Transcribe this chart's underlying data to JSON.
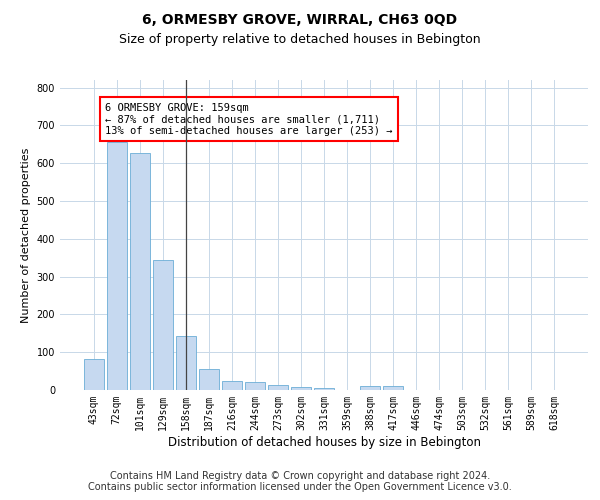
{
  "title": "6, ORMESBY GROVE, WIRRAL, CH63 0QD",
  "subtitle": "Size of property relative to detached houses in Bebington",
  "xlabel": "Distribution of detached houses by size in Bebington",
  "ylabel": "Number of detached properties",
  "categories": [
    "43sqm",
    "72sqm",
    "101sqm",
    "129sqm",
    "158sqm",
    "187sqm",
    "216sqm",
    "244sqm",
    "273sqm",
    "302sqm",
    "331sqm",
    "359sqm",
    "388sqm",
    "417sqm",
    "446sqm",
    "474sqm",
    "503sqm",
    "532sqm",
    "561sqm",
    "589sqm",
    "618sqm"
  ],
  "values": [
    82,
    655,
    628,
    343,
    143,
    55,
    25,
    20,
    13,
    8,
    4,
    0,
    10,
    10,
    0,
    0,
    0,
    0,
    0,
    0,
    0
  ],
  "bar_color": "#c6d9f0",
  "bar_edge_color": "#6baed6",
  "highlight_index": 4,
  "highlight_line_color": "#444444",
  "annotation_box_text": "6 ORMESBY GROVE: 159sqm\n← 87% of detached houses are smaller (1,711)\n13% of semi-detached houses are larger (253) →",
  "annotation_box_color": "white",
  "annotation_box_edge_color": "red",
  "ylim": [
    0,
    820
  ],
  "yticks": [
    0,
    100,
    200,
    300,
    400,
    500,
    600,
    700,
    800
  ],
  "bg_color": "white",
  "grid_color": "#c8d8e8",
  "footer_line1": "Contains HM Land Registry data © Crown copyright and database right 2024.",
  "footer_line2": "Contains public sector information licensed under the Open Government Licence v3.0.",
  "title_fontsize": 10,
  "subtitle_fontsize": 9,
  "tick_fontsize": 7,
  "ylabel_fontsize": 8,
  "xlabel_fontsize": 8.5,
  "footer_fontsize": 7,
  "annotation_fontsize": 7.5
}
